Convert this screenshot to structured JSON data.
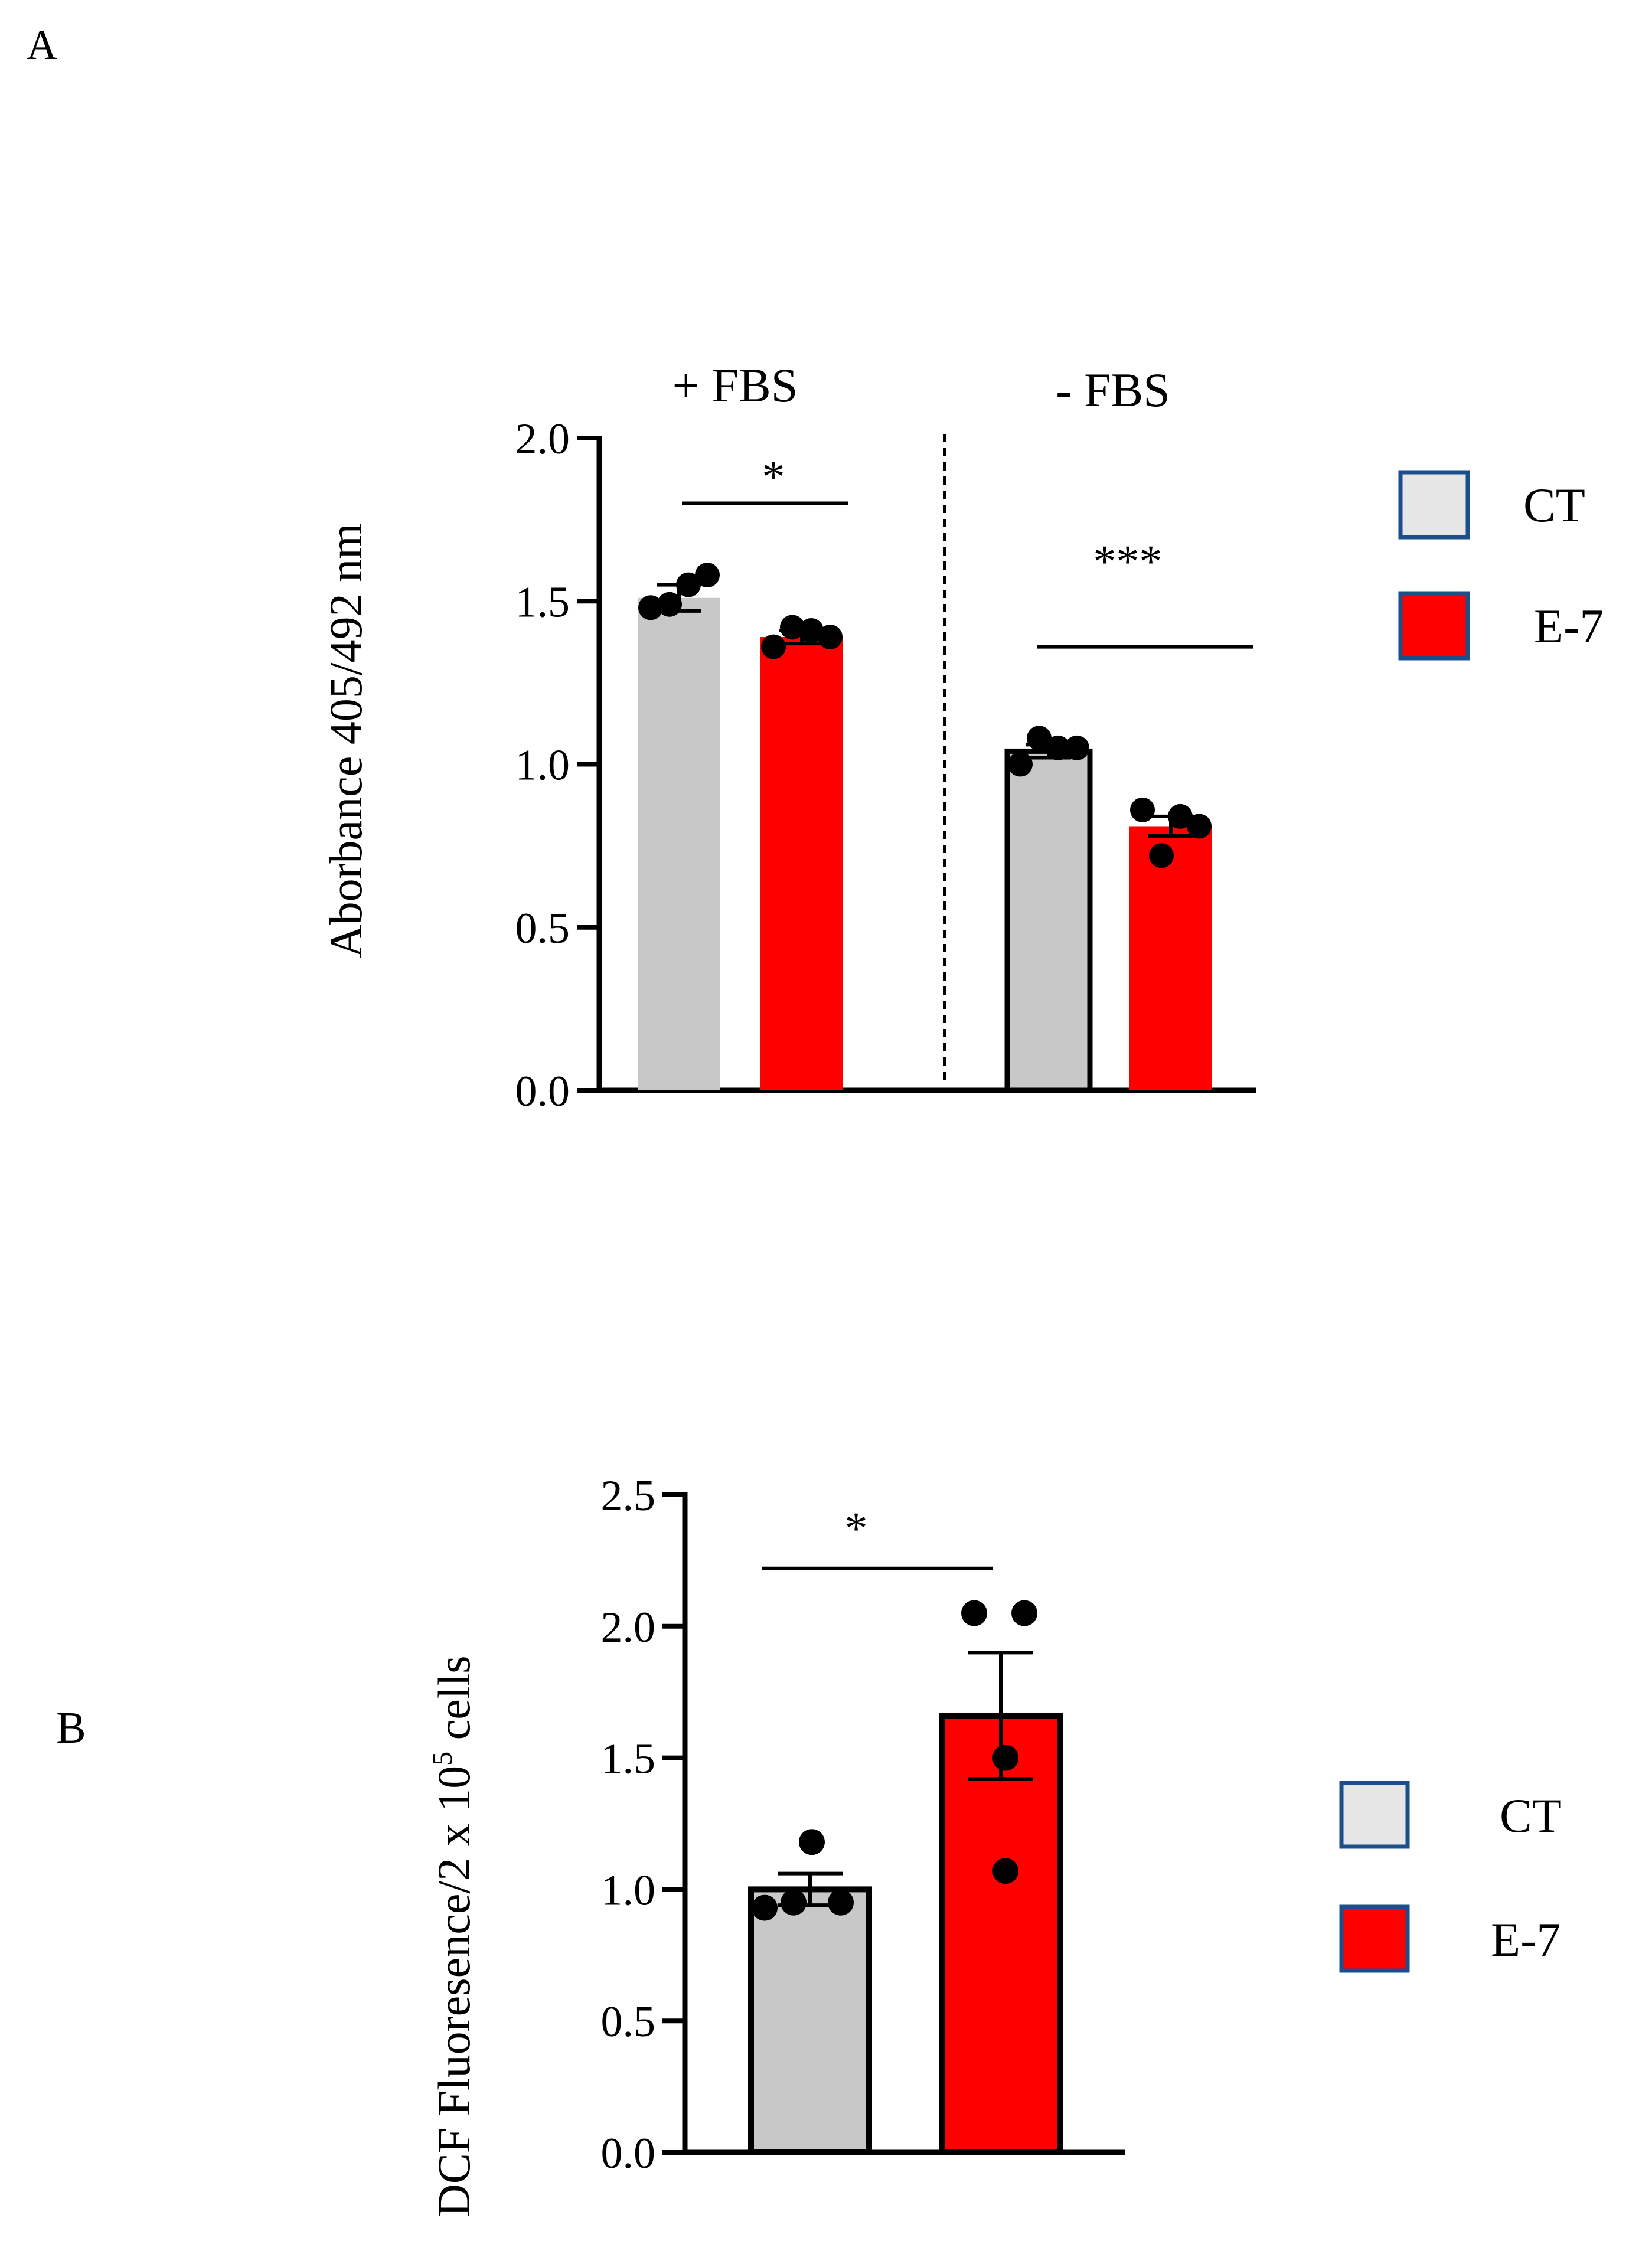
{
  "chart_data": [
    {
      "panel": "A",
      "type": "bar",
      "ylabel": "Aborbance  405/492 nm",
      "ylim": [
        0,
        2.0
      ],
      "yticks": [
        0.0,
        0.5,
        1.0,
        1.5,
        2.0
      ],
      "ytick_labels": [
        "0.0",
        "0.5",
        "1.0",
        "1.5",
        "2.0"
      ],
      "groups": [
        {
          "label": "+ FBS",
          "significance": "*",
          "bars": [
            {
              "series": "CT",
              "value": 1.51,
              "sem": 0.04,
              "points": [
                1.48,
                1.49,
                1.55,
                1.58
              ],
              "outlined": false
            },
            {
              "series": "E-7",
              "value": 1.39,
              "sem": 0.02,
              "points": [
                1.36,
                1.42,
                1.41,
                1.39
              ],
              "outlined": false
            }
          ]
        },
        {
          "label": "- FBS",
          "significance": "***",
          "bars": [
            {
              "series": "CT",
              "value": 1.04,
              "sem": 0.02,
              "points": [
                1.0,
                1.08,
                1.05,
                1.05
              ],
              "outlined": true
            },
            {
              "series": "E-7",
              "value": 0.81,
              "sem": 0.03,
              "points": [
                0.86,
                0.72,
                0.84,
                0.81
              ],
              "outlined": false
            }
          ]
        }
      ],
      "legend": [
        {
          "label": "CT",
          "color": "#e6e6e6",
          "border": "#1a4f8b"
        },
        {
          "label": "E-7",
          "color": "#ff0000",
          "border": "#1a4f8b"
        }
      ]
    },
    {
      "panel": "B",
      "type": "bar",
      "ylabel_main": "DCF Fluoresence/2 x 10",
      "ylabel_sup": "5",
      "ylabel_tail": " cells",
      "ylim": [
        0,
        2.5
      ],
      "yticks": [
        0.0,
        0.5,
        1.0,
        1.5,
        2.0,
        2.5
      ],
      "ytick_labels": [
        "0.0",
        "0.5",
        "1.0",
        "1.5",
        "2.0",
        "2.5"
      ],
      "significance": "*",
      "bars": [
        {
          "series": "CT",
          "value": 1.0,
          "sem": 0.06,
          "points": [
            0.93,
            0.95,
            1.18,
            0.95
          ]
        },
        {
          "series": "E-7",
          "value": 1.66,
          "sem": 0.24,
          "points": [
            2.05,
            2.05,
            1.5,
            1.07
          ]
        }
      ],
      "legend": [
        {
          "label": "CT",
          "color": "#e6e6e6",
          "border": "#1a4f8b"
        },
        {
          "label": "E-7",
          "color": "#ff0000",
          "border": "#1a4f8b"
        }
      ]
    }
  ],
  "colors": {
    "ct": "#c8c8c8",
    "e7": "#ff0000",
    "axis": "#000000"
  }
}
